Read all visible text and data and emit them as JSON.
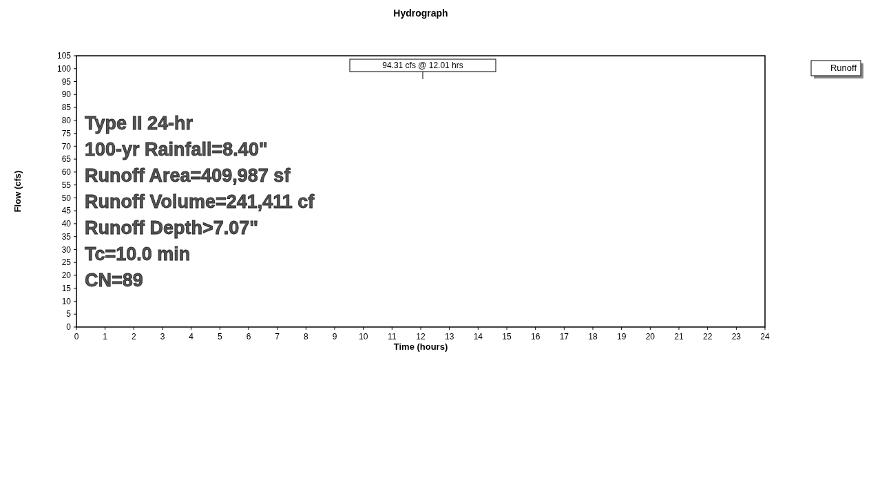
{
  "chart_data": {
    "type": "line",
    "title": "Hydrograph",
    "xlabel": "Time  (hours)",
    "ylabel": "Flow  (cfs)",
    "xlim": [
      0,
      24
    ],
    "xticks": [
      0,
      1,
      2,
      3,
      4,
      5,
      6,
      7,
      8,
      9,
      10,
      11,
      12,
      13,
      14,
      15,
      16,
      17,
      18,
      19,
      20,
      21,
      22,
      23,
      24
    ],
    "ylim": [
      0,
      105
    ],
    "yticks": [
      0,
      5,
      10,
      15,
      20,
      25,
      30,
      35,
      40,
      45,
      50,
      55,
      60,
      65,
      70,
      75,
      80,
      85,
      90,
      95,
      100,
      105
    ],
    "annotations": [
      "94.31 cfs @ 12.01 hrs",
      "Type II 24-hr",
      "100-yr Rainfall=8.40\"",
      "Runoff Area=409,987 sf",
      "Runoff Volume=241,411 cf",
      "Runoff Depth>7.07\"",
      "Tc=10.0 min",
      "CN=89",
      "Runoff"
    ]
  }
}
